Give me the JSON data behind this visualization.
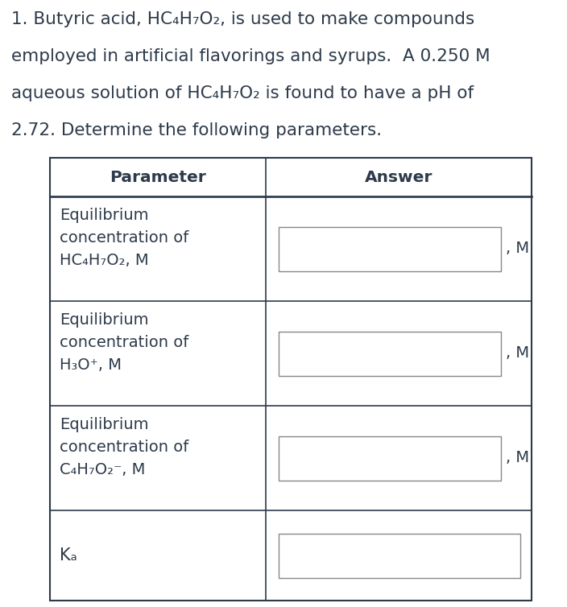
{
  "background_color": "#ffffff",
  "text_color": "#2d3a4a",
  "title_lines": [
    "1. Butyric acid, HC₄H₇O₂, is used to make compounds",
    "employed in artificial flavorings and syrups.  A 0.250 M",
    "aqueous solution of HC₄H₇O₂ is found to have a pH of",
    "2.72. Determine the following parameters."
  ],
  "col_header_param": "Parameter",
  "col_header_answer": "Answer",
  "rows": [
    {
      "param_lines": [
        "Equilibrium",
        "concentration of",
        "HC₄H₇O₂, M"
      ],
      "has_unit": true,
      "unit": ", M"
    },
    {
      "param_lines": [
        "Equilibrium",
        "concentration of",
        "H₃O⁺, M"
      ],
      "has_unit": true,
      "unit": ", M"
    },
    {
      "param_lines": [
        "Equilibrium",
        "concentration of",
        "C₄H₇O₂⁻, M"
      ],
      "has_unit": true,
      "unit": ", M"
    },
    {
      "param_lines": [
        "Kₐ"
      ],
      "has_unit": false,
      "unit": ""
    }
  ],
  "input_box_color": "#ffffff",
  "input_box_border": "#888888",
  "table_border": "#2d3a4a",
  "font_size_title": 15.5,
  "font_size_table": 14.0,
  "font_size_header": 14.5
}
